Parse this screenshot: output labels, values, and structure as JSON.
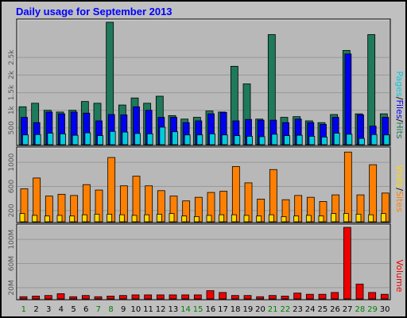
{
  "title": "Daily usage for September 2013",
  "colors": {
    "background": "#c0c0c0",
    "panel": "#b8b8b8",
    "hits": "#1e7a5a",
    "files": "#0000ee",
    "pages": "#00ccdd",
    "visits": "#ffd700",
    "sites": "#ff8000",
    "volume": "#ee0000",
    "weekday_label": "#000000",
    "weekend_label": "#008000"
  },
  "legend": {
    "pages": "Pages",
    "files": "Files",
    "hits": "Hits",
    "visits": "Visits",
    "sites": "Sites",
    "volume": "Volume",
    "sep": "/"
  },
  "chart_data": [
    {
      "type": "bar",
      "panel": "hits-files-pages",
      "categories": [
        "1",
        "2",
        "3",
        "4",
        "5",
        "6",
        "7",
        "8",
        "9",
        "10",
        "11",
        "12",
        "13",
        "14",
        "15",
        "16",
        "17",
        "18",
        "19",
        "20",
        "21",
        "22",
        "23",
        "24",
        "25",
        "26",
        "27",
        "28",
        "29",
        "30"
      ],
      "weekend_days": [
        "1",
        "7",
        "8",
        "14",
        "15",
        "21",
        "22",
        "28",
        "29"
      ],
      "ylim": [
        0,
        3500
      ],
      "yticks": [
        "500",
        "1k",
        "1.5k",
        "2k",
        "2.5k"
      ],
      "ytick_values": [
        500,
        1000,
        1500,
        2000,
        2500
      ],
      "series": [
        {
          "name": "Hits",
          "values": [
            1100,
            1200,
            1000,
            950,
            1000,
            1250,
            1200,
            3500,
            1150,
            1350,
            1200,
            1400,
            850,
            750,
            800,
            980,
            950,
            2250,
            1750,
            750,
            3150,
            800,
            820,
            700,
            650,
            880,
            2700,
            900,
            3150,
            900
          ]
        },
        {
          "name": "Files",
          "values": [
            800,
            650,
            950,
            900,
            950,
            920,
            700,
            880,
            870,
            1100,
            1000,
            800,
            800,
            650,
            700,
            900,
            940,
            700,
            740,
            720,
            720,
            650,
            750,
            650,
            600,
            800,
            2600,
            870,
            550,
            800
          ]
        },
        {
          "name": "Pages",
          "values": [
            300,
            310,
            350,
            330,
            290,
            360,
            280,
            400,
            380,
            340,
            330,
            520,
            390,
            300,
            300,
            330,
            300,
            280,
            260,
            250,
            320,
            280,
            290,
            260,
            240,
            350,
            320,
            200,
            310,
            300
          ]
        }
      ]
    },
    {
      "type": "bar",
      "panel": "visits-sites",
      "categories": [
        "1",
        "2",
        "3",
        "4",
        "5",
        "6",
        "7",
        "8",
        "9",
        "10",
        "11",
        "12",
        "13",
        "14",
        "15",
        "16",
        "17",
        "18",
        "19",
        "20",
        "21",
        "22",
        "23",
        "24",
        "25",
        "26",
        "27",
        "28",
        "29",
        "30"
      ],
      "ylim": [
        0,
        1200
      ],
      "yticks": [
        "200",
        "600",
        "1000"
      ],
      "ytick_values": [
        200,
        600,
        1000
      ],
      "series": [
        {
          "name": "Visits",
          "values": [
            150,
            120,
            110,
            120,
            110,
            130,
            140,
            140,
            130,
            120,
            130,
            140,
            150,
            110,
            100,
            120,
            130,
            130,
            120,
            110,
            130,
            100,
            110,
            120,
            110,
            150,
            150,
            140,
            130,
            150
          ]
        },
        {
          "name": "Sites",
          "values": [
            560,
            740,
            440,
            470,
            450,
            630,
            540,
            1080,
            610,
            770,
            610,
            530,
            440,
            360,
            420,
            500,
            520,
            930,
            660,
            390,
            880,
            380,
            450,
            420,
            350,
            460,
            1170,
            460,
            960,
            490
          ]
        }
      ]
    },
    {
      "type": "bar",
      "panel": "volume",
      "categories": [
        "1",
        "2",
        "3",
        "4",
        "5",
        "6",
        "7",
        "8",
        "9",
        "10",
        "11",
        "12",
        "13",
        "14",
        "15",
        "16",
        "17",
        "18",
        "19",
        "20",
        "21",
        "22",
        "23",
        "24",
        "25",
        "26",
        "27",
        "28",
        "29",
        "30"
      ],
      "ylim": [
        0,
        120
      ],
      "yticks": [
        "20M",
        "60M",
        "100M"
      ],
      "ytick_values": [
        20,
        60,
        100
      ],
      "series": [
        {
          "name": "Volume",
          "values": [
            5,
            6,
            7,
            10,
            5,
            7,
            5,
            6,
            7,
            8,
            8,
            8,
            8,
            8,
            8,
            15,
            12,
            7,
            7,
            5,
            7,
            6,
            11,
            9,
            9,
            12,
            120,
            26,
            12,
            9
          ]
        }
      ]
    }
  ]
}
